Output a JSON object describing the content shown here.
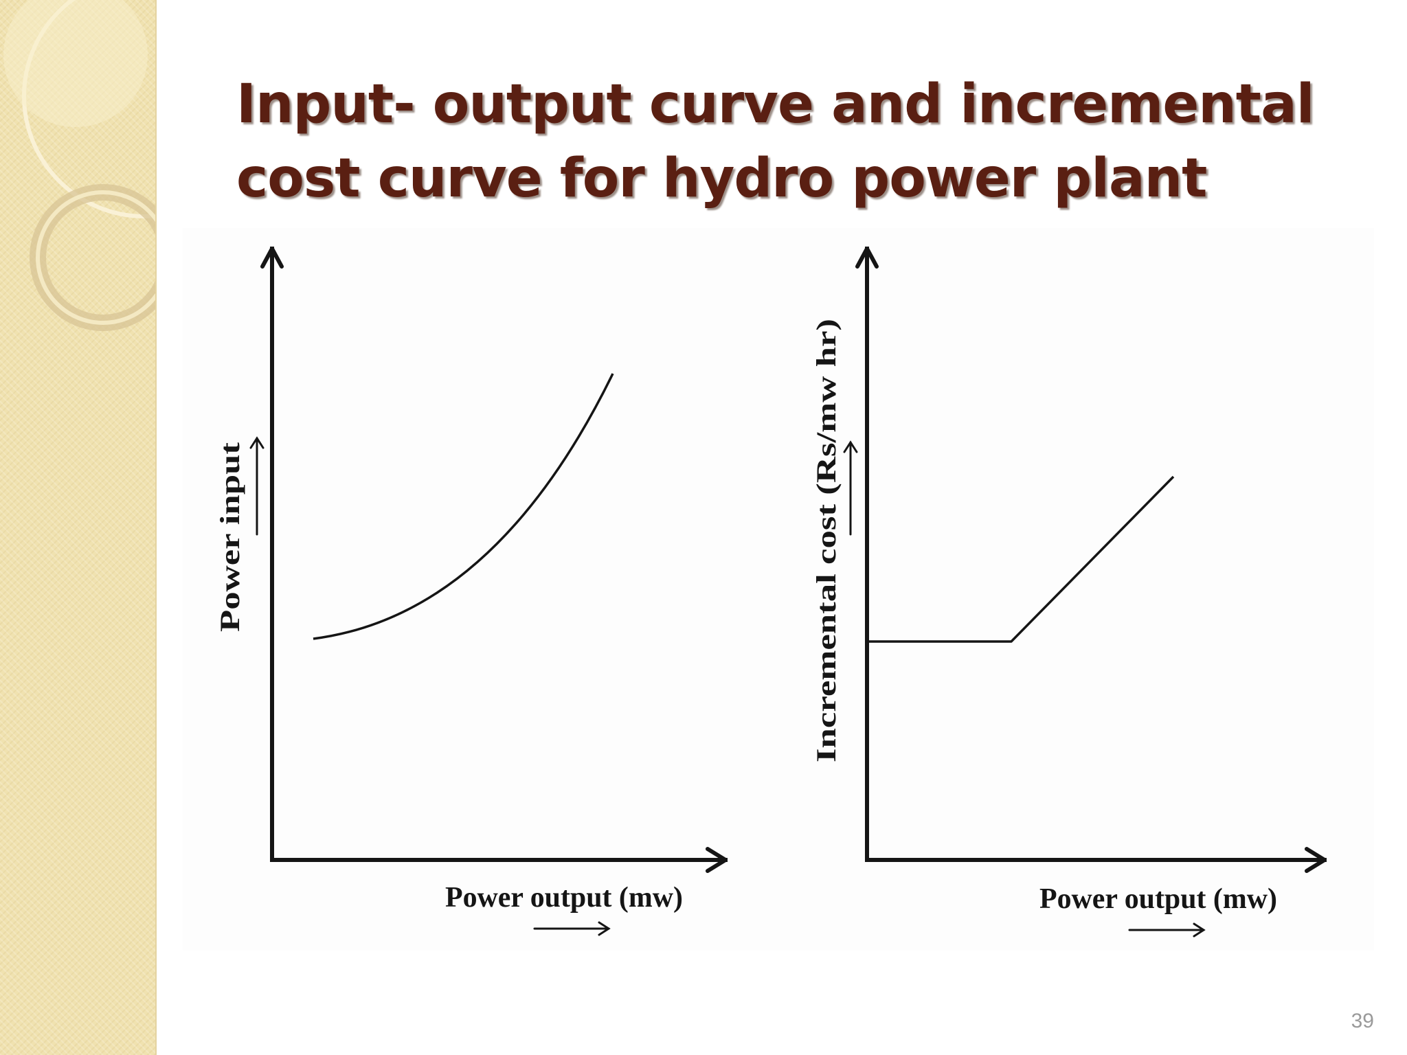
{
  "slide": {
    "title_line1": "Input- output curve and incremental",
    "title_line2": "cost curve for hydro power plant",
    "slide_number": "39"
  },
  "colors": {
    "title": "#5a1f12",
    "sidebar": "#f0e2b0",
    "ink": "#151515",
    "slide_number": "#9a9a9a"
  },
  "diagrams": [
    {
      "type": "line",
      "xlabel": "Power output (mw)",
      "ylabel": "Power input",
      "shape": "convex rising curve starting above zero input"
    },
    {
      "type": "line",
      "xlabel": "Power output (mw)",
      "ylabel": "Incremental cost (Rs/mw hr)",
      "shape": "constant incremental cost, then linear rise"
    }
  ]
}
